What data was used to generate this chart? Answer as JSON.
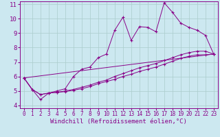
{
  "background_color": "#cce8f0",
  "grid_color": "#aacccc",
  "line_color": "#880088",
  "xlabel": "Windchill (Refroidissement éolien,°C)",
  "xlim": [
    -0.5,
    23.5
  ],
  "ylim": [
    3.8,
    11.2
  ],
  "xticks": [
    0,
    1,
    2,
    3,
    4,
    5,
    6,
    7,
    8,
    9,
    10,
    11,
    12,
    13,
    14,
    15,
    16,
    17,
    18,
    19,
    20,
    21,
    22,
    23
  ],
  "yticks": [
    4,
    5,
    6,
    7,
    8,
    9,
    10,
    11
  ],
  "line1_x": [
    0,
    1,
    2,
    3,
    4,
    5,
    6,
    7,
    8,
    9,
    10,
    11,
    12,
    13,
    14,
    15,
    16,
    17,
    18,
    19,
    20,
    21,
    22,
    23
  ],
  "line1_y": [
    5.9,
    5.1,
    4.4,
    4.85,
    5.0,
    5.15,
    6.0,
    6.5,
    6.65,
    7.3,
    7.55,
    9.2,
    10.1,
    8.5,
    9.45,
    9.4,
    9.1,
    11.1,
    10.45,
    9.7,
    9.4,
    9.2,
    8.85,
    7.55
  ],
  "line2_x": [
    0,
    1,
    2,
    3,
    4,
    5,
    6,
    7,
    8,
    9,
    10,
    11,
    12,
    13,
    14,
    15,
    16,
    17,
    18,
    19,
    20,
    21,
    22,
    23
  ],
  "line2_y": [
    5.9,
    5.1,
    4.75,
    4.85,
    4.9,
    5.0,
    5.1,
    5.25,
    5.4,
    5.6,
    5.75,
    6.0,
    6.2,
    6.4,
    6.6,
    6.75,
    6.9,
    7.1,
    7.3,
    7.5,
    7.65,
    7.75,
    7.75,
    7.55
  ],
  "line3_x": [
    0,
    1,
    2,
    3,
    4,
    5,
    6,
    7,
    8,
    9,
    10,
    11,
    12,
    13,
    14,
    15,
    16,
    17,
    18,
    19,
    20,
    21,
    22,
    23
  ],
  "line3_y": [
    5.9,
    5.1,
    4.75,
    4.85,
    4.9,
    4.95,
    5.05,
    5.15,
    5.3,
    5.5,
    5.65,
    5.8,
    6.0,
    6.15,
    6.35,
    6.5,
    6.65,
    6.85,
    7.05,
    7.25,
    7.4,
    7.5,
    7.5,
    7.55
  ],
  "line4_x": [
    0,
    23
  ],
  "line4_y": [
    5.9,
    7.55
  ],
  "xlabel_fontsize": 6.5,
  "tick_fontsize_x": 5.5,
  "tick_fontsize_y": 6.5
}
